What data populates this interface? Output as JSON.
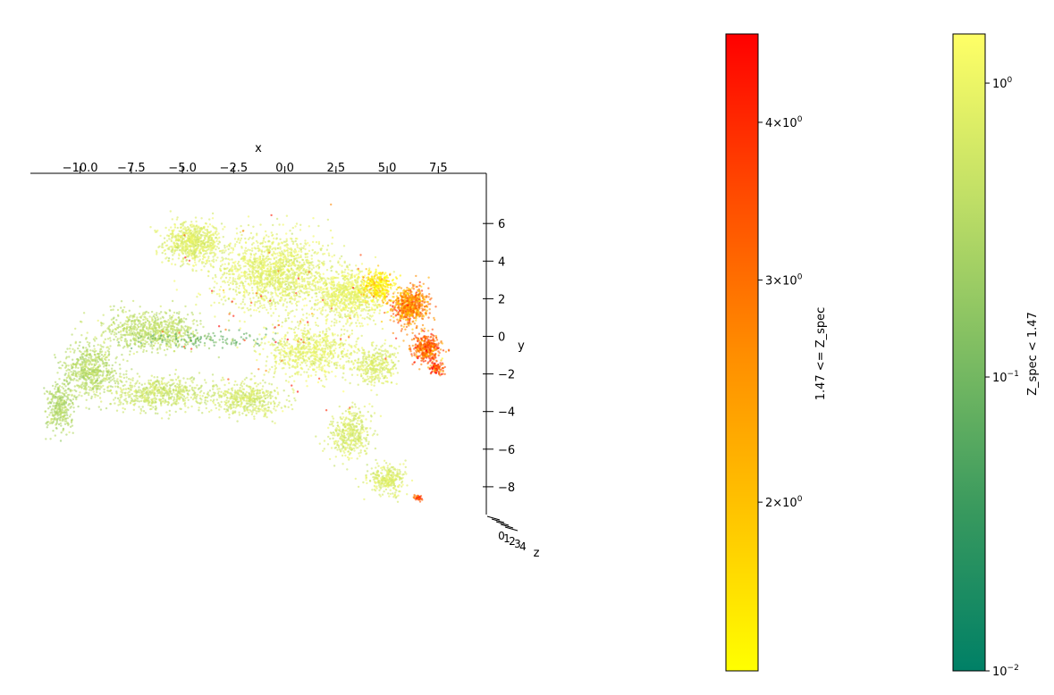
{
  "chart_data": {
    "type": "scatter",
    "projection": "3d",
    "axes": {
      "x": {
        "label": "x",
        "ticks": [
          "−10.0",
          "−7.5",
          "−5.0",
          "−2.5",
          "0.0",
          "2.5",
          "5.0",
          "7.5"
        ],
        "tick_values": [
          -10,
          -7.5,
          -5,
          -2.5,
          0,
          2.5,
          5,
          7.5
        ],
        "range": [
          -12.4,
          9.9
        ]
      },
      "y": {
        "label": "y",
        "ticks": [
          "6",
          "4",
          "2",
          "0",
          "−2",
          "−4",
          "−6",
          "−8"
        ],
        "tick_values": [
          6,
          4,
          2,
          0,
          -2,
          -4,
          -6,
          -8
        ],
        "range": [
          -9.6,
          8.5
        ]
      },
      "z": {
        "label": "z",
        "ticks": [
          "0",
          "1",
          "2",
          "3",
          "4"
        ],
        "tick_values": [
          0,
          1,
          2,
          3,
          4
        ]
      }
    },
    "grid": false,
    "series": [
      {
        "colormap": [
          "#ffff00",
          "#ffc400",
          "#ff8d00",
          "#ff4a00",
          "#ff0000"
        ],
        "regions": [
          {
            "center": [
              4.6,
              2.7
            ],
            "spread": [
              0.7,
              0.7
            ],
            "count": 280,
            "value": 1.6
          },
          {
            "center": [
              6.1,
              1.6
            ],
            "spread": [
              0.8,
              0.9
            ],
            "count": 650,
            "value": 2.6
          },
          {
            "center": [
              6.9,
              -0.6
            ],
            "spread": [
              0.6,
              0.7
            ],
            "count": 380,
            "value": 3.1
          },
          {
            "center": [
              7.4,
              -1.7
            ],
            "spread": [
              0.35,
              0.35
            ],
            "count": 90,
            "value": 3.5
          },
          {
            "center": [
              6.5,
              -8.6
            ],
            "spread": [
              0.18,
              0.15
            ],
            "count": 35,
            "value": 3.6
          },
          {
            "center": [
              -0.5,
              1.5
            ],
            "spread": [
              5.5,
              4.5
            ],
            "count": 60,
            "value": 3.8
          }
        ]
      },
      {
        "colormap": [
          "#008066",
          "#38995e",
          "#7ebd62",
          "#c2e066",
          "#ffff66"
        ],
        "regions": [
          {
            "center": [
              -4.5,
              5.0
            ],
            "spread": [
              1.3,
              1.0
            ],
            "count": 700,
            "value": 0.75
          },
          {
            "center": [
              -0.5,
              3.4
            ],
            "spread": [
              2.6,
              1.8
            ],
            "count": 1500,
            "value": 0.8
          },
          {
            "center": [
              3.2,
              2.2
            ],
            "spread": [
              1.5,
              1.2
            ],
            "count": 800,
            "value": 0.9
          },
          {
            "center": [
              1.2,
              -0.8
            ],
            "spread": [
              2.0,
              1.2
            ],
            "count": 700,
            "value": 0.85
          },
          {
            "center": [
              4.4,
              -1.5
            ],
            "spread": [
              1.0,
              1.0
            ],
            "count": 350,
            "value": 0.7
          },
          {
            "center": [
              -6.5,
              0.3
            ],
            "spread": [
              2.2,
              0.9
            ],
            "count": 750,
            "value": 0.4
          },
          {
            "center": [
              -9.5,
              -1.8
            ],
            "spread": [
              1.2,
              1.3
            ],
            "count": 600,
            "value": 0.35
          },
          {
            "center": [
              -11.0,
              -3.8
            ],
            "spread": [
              0.6,
              1.1
            ],
            "count": 300,
            "value": 0.3
          },
          {
            "center": [
              -6.0,
              -3.0
            ],
            "spread": [
              2.4,
              0.8
            ],
            "count": 600,
            "value": 0.5
          },
          {
            "center": [
              -1.8,
              -3.3
            ],
            "spread": [
              1.6,
              0.8
            ],
            "count": 450,
            "value": 0.6
          },
          {
            "center": [
              3.2,
              -5.2
            ],
            "spread": [
              0.9,
              1.2
            ],
            "count": 400,
            "value": 0.65
          },
          {
            "center": [
              5.0,
              -7.6
            ],
            "spread": [
              0.8,
              0.7
            ],
            "count": 300,
            "value": 0.7
          },
          {
            "center": [
              -4.0,
              -0.2
            ],
            "spread": [
              3.5,
              0.4
            ],
            "count": 120,
            "value": 0.08
          }
        ]
      }
    ],
    "colorbars": [
      {
        "label": "1.47 <= Z_spec",
        "scale": "log",
        "range": [
          1.47,
          4.7
        ],
        "colors": [
          "#ffff00",
          "#ffc400",
          "#ff8d00",
          "#ff4a00",
          "#ff0000"
        ],
        "ticks": [
          {
            "value": 2,
            "base": "2",
            "exp": "0"
          },
          {
            "value": 3,
            "base": "3",
            "exp": "0"
          },
          {
            "value": 4,
            "base": "4",
            "exp": "0"
          }
        ]
      },
      {
        "label": "Z_spec < 1.47",
        "scale": "log",
        "range": [
          0.01,
          1.47
        ],
        "colors": [
          "#008066",
          "#38995e",
          "#7ebd62",
          "#c2e066",
          "#ffff66"
        ],
        "ticks": [
          {
            "value": 0.01,
            "base": "10",
            "exp": "−2"
          },
          {
            "value": 0.1,
            "base": "10",
            "exp": "−1"
          },
          {
            "value": 1,
            "base": "10",
            "exp": "0"
          }
        ]
      }
    ]
  }
}
